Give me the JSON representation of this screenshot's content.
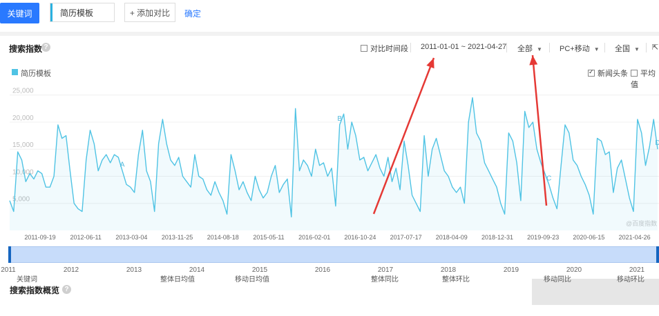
{
  "toolbar": {
    "keyword_button": "关键词",
    "keyword_value": "简历模板",
    "add_compare": "+ 添加对比",
    "confirm": "确定"
  },
  "panel": {
    "title": "搜索指数",
    "compare_period": "对比时间段",
    "date_range": "2011-01-01 ~ 2021-04-27",
    "region": "全部",
    "platform": "PC+移动",
    "scope": "全国",
    "news_headline": "新闻头条",
    "average": "平均值"
  },
  "legend": {
    "label": "简历模板",
    "color": "#4fc3e4"
  },
  "watermark": "@百度指数",
  "summary": {
    "title": "搜索指数概览",
    "columns": [
      "关键词",
      "整体日均值",
      "移动日均值",
      "整体同比",
      "整体环比",
      "移动同比",
      "移动环比"
    ]
  },
  "chart_data": {
    "type": "line",
    "title": "",
    "y_ticks": [
      "25,000",
      "20,000",
      "15,000",
      "10,000",
      "5,000"
    ],
    "ylim": [
      0,
      27000
    ],
    "x_ticks": [
      "2011-09-19",
      "2012-06-11",
      "2013-03-04",
      "2013-11-25",
      "2014-08-18",
      "2015-05-11",
      "2016-02-01",
      "2016-10-24",
      "2017-07-17",
      "2018-04-09",
      "2018-12-31",
      "2019-09-23",
      "2020-06-15",
      "2021-04-26"
    ],
    "year_ticks": [
      "2011",
      "2012",
      "2013",
      "2014",
      "2015",
      "2016",
      "2017",
      "2018",
      "2019",
      "2020",
      "2021"
    ],
    "annotations": [
      "A",
      "B",
      "C",
      "D"
    ],
    "series": [
      {
        "values": [
          5500,
          3500,
          14500,
          13000,
          9000,
          10500,
          9500,
          11000,
          10500,
          8000,
          8000,
          10000,
          19500,
          17000,
          17500,
          11000,
          5000,
          4000,
          3500,
          13000,
          18500,
          16000,
          11000,
          13000,
          14000,
          12500,
          14000,
          13500,
          11000,
          8500,
          8000,
          7000,
          14000,
          18500,
          11000,
          9000,
          3500,
          16000,
          20500,
          16000,
          13000,
          12000,
          13500,
          10000,
          9000,
          8000,
          14000,
          10000,
          9500,
          7500,
          6500,
          9000,
          7000,
          5500,
          3000,
          14000,
          11000,
          7500,
          9000,
          7000,
          5500,
          10000,
          7500,
          6000,
          7000,
          10000,
          12000,
          7000,
          8500,
          9500,
          2500,
          22500,
          11000,
          13000,
          12000,
          10000,
          15000,
          12000,
          12500,
          10000,
          11500,
          4500,
          19500,
          21500,
          15000,
          20000,
          17500,
          13000,
          13500,
          11000,
          12500,
          14000,
          11500,
          10000,
          13500,
          9000,
          11500,
          7500,
          16500,
          12000,
          6500,
          5000,
          3500,
          17500,
          10000,
          15000,
          17000,
          14000,
          11000,
          10000,
          8000,
          7000,
          8000,
          5000,
          20000,
          24500,
          18000,
          16500,
          12500,
          11000,
          9500,
          8000,
          5000,
          3000,
          18000,
          16500,
          12500,
          5500,
          22000,
          19000,
          20000,
          15000,
          12500,
          10500,
          8500,
          6000,
          4000,
          12000,
          19500,
          18000,
          13000,
          12000,
          10000,
          8500,
          6500,
          3000,
          17000,
          16500,
          14000,
          14500,
          7000,
          11500,
          13000,
          9500,
          6000,
          3500,
          20500,
          18000,
          12000,
          15500,
          20500,
          15000
        ]
      }
    ]
  }
}
